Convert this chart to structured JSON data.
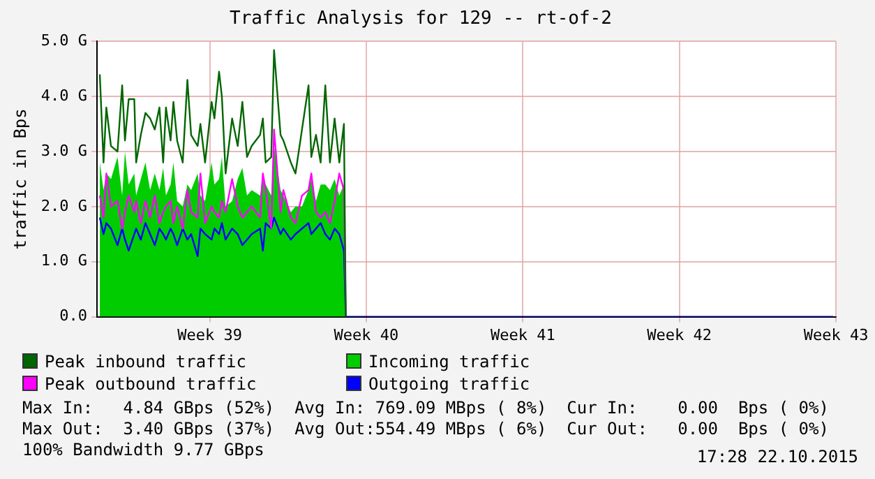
{
  "chart_data": {
    "type": "line",
    "title": "Traffic Analysis for 129 -- rt-of-2",
    "ylabel": "traffic in Bps",
    "x": [
      "2015-09-16T02:00",
      "2015-09-16T06:00",
      "2015-09-16T09:00",
      "2015-09-16T14:00",
      "2015-09-16T21:00",
      "2015-09-17T02:00",
      "2015-09-17T05:00",
      "2015-09-17T09:00",
      "2015-09-17T15:00",
      "2015-09-17T17:00",
      "2015-09-17T22:00",
      "2015-09-18T03:00",
      "2015-09-18T08:00",
      "2015-09-18T13:00",
      "2015-09-18T18:00",
      "2015-09-18T22:00",
      "2015-09-19T01:00",
      "2015-09-19T06:00",
      "2015-09-19T09:00",
      "2015-09-19T13:00",
      "2015-09-19T19:00",
      "2015-09-20T00:00",
      "2015-09-20T04:00",
      "2015-09-20T11:00",
      "2015-09-20T14:00",
      "2015-09-20T19:00",
      "2015-09-21T02:00",
      "2015-09-21T05:00",
      "2015-09-21T10:00",
      "2015-09-21T13:00",
      "2015-09-21T17:00",
      "2015-09-22T00:00",
      "2015-09-22T06:00",
      "2015-09-22T11:00",
      "2015-09-22T16:00",
      "2015-09-22T21:00",
      "2015-09-23T06:00",
      "2015-09-23T09:00",
      "2015-09-23T12:00",
      "2015-09-23T18:00",
      "2015-09-23T21:00",
      "2015-09-24T04:00",
      "2015-09-24T07:00",
      "2015-09-24T15:00",
      "2015-09-24T20:00",
      "2015-09-25T03:00",
      "2015-09-25T10:00",
      "2015-09-25T13:00",
      "2015-09-25T18:00",
      "2015-09-25T23:00",
      "2015-09-26T04:00",
      "2015-09-26T09:00",
      "2015-09-26T14:00",
      "2015-09-26T19:00",
      "2015-09-27T00:00",
      "2015-09-27T02:00",
      "2015-10-18T21:00"
    ],
    "series": [
      {
        "name": "Peak inbound traffic",
        "type": "line",
        "color": "#006600",
        "values": [
          4.4,
          2.8,
          3.8,
          3.1,
          3.0,
          4.2,
          3.2,
          3.95,
          3.95,
          2.8,
          3.3,
          3.7,
          3.6,
          3.4,
          3.8,
          2.8,
          3.8,
          3.2,
          3.9,
          3.2,
          2.8,
          4.3,
          3.3,
          3.1,
          3.5,
          2.8,
          3.9,
          3.6,
          4.45,
          4.0,
          2.6,
          3.6,
          3.1,
          3.9,
          2.9,
          3.1,
          3.3,
          3.6,
          2.8,
          2.9,
          4.84,
          3.3,
          3.2,
          2.8,
          2.6,
          3.4,
          4.2,
          2.9,
          3.3,
          2.8,
          4.2,
          2.8,
          3.6,
          2.8,
          3.5,
          0,
          null
        ]
      },
      {
        "name": "Incoming traffic",
        "type": "area",
        "color": "#00cc00",
        "values": [
          2.8,
          2.3,
          2.6,
          2.5,
          2.9,
          2.2,
          3.0,
          2.4,
          2.6,
          2.2,
          2.5,
          2.8,
          2.3,
          2.6,
          2.3,
          2.7,
          2.2,
          2.4,
          2.8,
          2.1,
          2.0,
          2.4,
          2.3,
          2.6,
          2.2,
          2.1,
          2.8,
          2.4,
          2.5,
          2.9,
          2.0,
          2.1,
          2.5,
          2.7,
          2.2,
          2.3,
          2.2,
          2.6,
          2.4,
          2.2,
          3.1,
          2.3,
          2.2,
          1.9,
          2.0,
          2.0,
          2.3,
          2.5,
          2.1,
          2.4,
          2.4,
          2.3,
          2.5,
          2.2,
          2.4,
          0,
          null
        ]
      },
      {
        "name": "Peak outbound traffic",
        "type": "line",
        "color": "#ff00ff",
        "values": [
          2.2,
          1.8,
          2.6,
          2.0,
          2.1,
          1.6,
          1.9,
          2.2,
          1.9,
          2.1,
          1.7,
          2.1,
          1.8,
          2.2,
          1.7,
          1.9,
          2.0,
          2.1,
          1.7,
          2.0,
          1.6,
          2.3,
          1.9,
          1.8,
          2.6,
          1.7,
          2.0,
          1.9,
          1.8,
          2.1,
          1.9,
          2.5,
          2.0,
          1.8,
          1.9,
          2.0,
          1.8,
          2.6,
          2.3,
          1.6,
          3.4,
          1.9,
          2.3,
          1.8,
          1.7,
          2.2,
          2.3,
          2.6,
          1.9,
          1.8,
          1.9,
          1.7,
          2.1,
          2.6,
          2.3,
          0,
          null
        ]
      },
      {
        "name": "Outgoing traffic",
        "type": "line",
        "color": "#0000ff",
        "values": [
          1.8,
          1.5,
          1.7,
          1.6,
          1.3,
          1.6,
          1.4,
          1.2,
          1.5,
          1.6,
          1.4,
          1.7,
          1.5,
          1.3,
          1.6,
          1.5,
          1.4,
          1.6,
          1.5,
          1.3,
          1.6,
          1.4,
          1.5,
          1.1,
          1.6,
          1.5,
          1.4,
          1.6,
          1.5,
          1.7,
          1.4,
          1.6,
          1.5,
          1.3,
          1.4,
          1.5,
          1.6,
          1.2,
          1.7,
          1.6,
          1.8,
          1.5,
          1.6,
          1.4,
          1.5,
          1.6,
          1.7,
          1.5,
          1.6,
          1.7,
          1.5,
          1.4,
          1.6,
          1.5,
          1.2,
          0,
          0
        ]
      }
    ],
    "xlim": [
      "2015-09-15T23:00",
      "2015-10-19"
    ],
    "xticks": [
      {
        "value": "2015-09-21",
        "label": "Week 39"
      },
      {
        "value": "2015-09-28",
        "label": "Week 40"
      },
      {
        "value": "2015-10-05",
        "label": "Week 41"
      },
      {
        "value": "2015-10-12",
        "label": "Week 42"
      },
      {
        "value": "2015-10-19",
        "label": "Week 43"
      }
    ],
    "ylim": [
      0,
      5
    ],
    "yticks": [
      {
        "value": 0,
        "label": "0.0"
      },
      {
        "value": 1,
        "label": "1.0 G"
      },
      {
        "value": 2,
        "label": "2.0 G"
      },
      {
        "value": 3,
        "label": "3.0 G"
      },
      {
        "value": 4,
        "label": "4.0 G"
      },
      {
        "value": 5,
        "label": "5.0 G"
      }
    ],
    "grid": true,
    "legend": "bottom",
    "marker": "none",
    "annotations": [
      "Max In:   4.84 GBps (52%)  Avg In: 769.09 MBps ( 8%)  Cur In:    0.00  Bps ( 0%)",
      "Max Out:  3.40 GBps (37%)  Avg Out:554.49 MBps ( 6%)  Cur Out:   0.00  Bps ( 0%)",
      "100% Bandwidth 9.77 GBps",
      "17:28 22.10.2015"
    ]
  }
}
